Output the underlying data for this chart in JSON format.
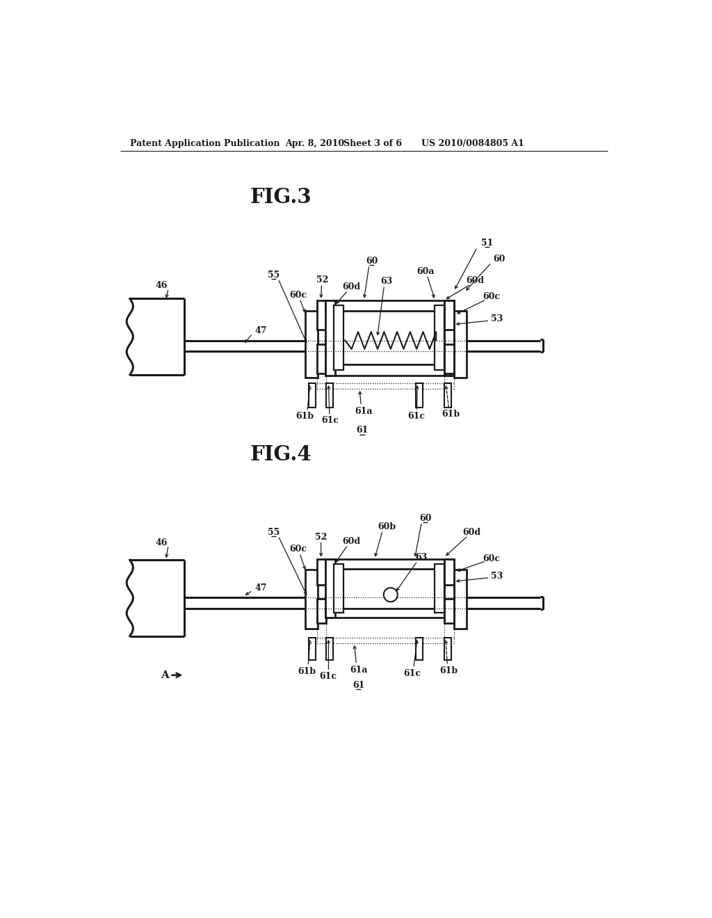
{
  "bg_color": "#ffffff",
  "lc": "#1a1a1a",
  "tc": "#1a1a1a",
  "header_left": "Patent Application Publication",
  "header_mid": "Apr. 8, 2010   Sheet 3 of 6",
  "header_right": "US 2010/0084805 A1",
  "fig3_title": "FIG.3",
  "fig4_title": "FIG.4"
}
